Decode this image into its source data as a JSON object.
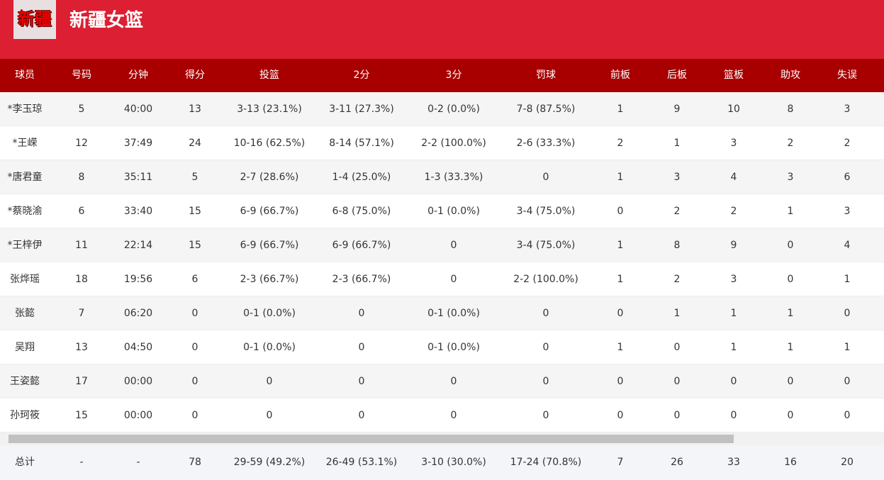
{
  "header": {
    "logo": "新疆",
    "title": "新疆女篮"
  },
  "table": {
    "columns": [
      "球员",
      "号码",
      "分钟",
      "得分",
      "投篮",
      "2分",
      "3分",
      "罚球",
      "前板",
      "后板",
      "篮板",
      "助攻",
      "失误"
    ],
    "rows": [
      [
        "*李玉琼",
        "5",
        "40:00",
        "13",
        "3-13 (23.1%)",
        "3-11 (27.3%)",
        "0-2 (0.0%)",
        "7-8 (87.5%)",
        "1",
        "9",
        "10",
        "8",
        "3"
      ],
      [
        "*王嵘",
        "12",
        "37:49",
        "24",
        "10-16 (62.5%)",
        "8-14 (57.1%)",
        "2-2 (100.0%)",
        "2-6 (33.3%)",
        "2",
        "1",
        "3",
        "2",
        "2"
      ],
      [
        "*唐君童",
        "8",
        "35:11",
        "5",
        "2-7 (28.6%)",
        "1-4 (25.0%)",
        "1-3 (33.3%)",
        "0",
        "1",
        "3",
        "4",
        "3",
        "6"
      ],
      [
        "*蔡晓渝",
        "6",
        "33:40",
        "15",
        "6-9 (66.7%)",
        "6-8 (75.0%)",
        "0-1 (0.0%)",
        "3-4 (75.0%)",
        "0",
        "2",
        "2",
        "1",
        "3"
      ],
      [
        "*王梓伊",
        "11",
        "22:14",
        "15",
        "6-9 (66.7%)",
        "6-9 (66.7%)",
        "0",
        "3-4 (75.0%)",
        "1",
        "8",
        "9",
        "0",
        "4"
      ],
      [
        "张烨瑶",
        "18",
        "19:56",
        "6",
        "2-3 (66.7%)",
        "2-3 (66.7%)",
        "0",
        "2-2 (100.0%)",
        "1",
        "2",
        "3",
        "0",
        "1"
      ],
      [
        "张懿",
        "7",
        "06:20",
        "0",
        "0-1 (0.0%)",
        "0",
        "0-1 (0.0%)",
        "0",
        "0",
        "1",
        "1",
        "1",
        "0"
      ],
      [
        "吴翔",
        "13",
        "04:50",
        "0",
        "0-1 (0.0%)",
        "0",
        "0-1 (0.0%)",
        "0",
        "1",
        "0",
        "1",
        "1",
        "1"
      ],
      [
        "王姿懿",
        "17",
        "00:00",
        "0",
        "0",
        "0",
        "0",
        "0",
        "0",
        "0",
        "0",
        "0",
        "0"
      ],
      [
        "孙珂筱",
        "15",
        "00:00",
        "0",
        "0",
        "0",
        "0",
        "0",
        "0",
        "0",
        "0",
        "0",
        "0"
      ]
    ],
    "totals": [
      "总计",
      "-",
      "-",
      "78",
      "29-59 (49.2%)",
      "26-49 (53.1%)",
      "3-10 (30.0%)",
      "17-24 (70.8%)",
      "7",
      "26",
      "33",
      "16",
      "20"
    ]
  }
}
